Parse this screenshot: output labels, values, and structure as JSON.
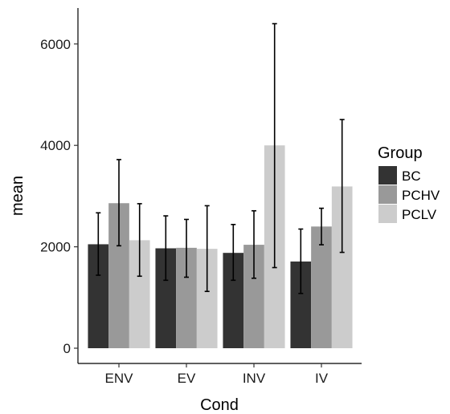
{
  "chart_data": {
    "type": "bar",
    "xlabel": "Cond",
    "ylabel": "mean",
    "categories": [
      "ENV",
      "EV",
      "INV",
      "IV"
    ],
    "ylim": [
      0,
      6400
    ],
    "yticks": [
      0,
      2000,
      4000,
      6000
    ],
    "grid": false,
    "legend": {
      "title": "Group",
      "placement": "right"
    },
    "series": [
      {
        "name": "BC",
        "color": "#333333",
        "values": [
          2050,
          1970,
          1880,
          1710
        ],
        "err_low": [
          1440,
          1340,
          1340,
          1080
        ],
        "err_high": [
          2670,
          2610,
          2440,
          2350
        ]
      },
      {
        "name": "PCHV",
        "color": "#999999",
        "values": [
          2860,
          1980,
          2040,
          2400
        ],
        "err_low": [
          2020,
          1400,
          1380,
          2040
        ],
        "err_high": [
          3720,
          2540,
          2710,
          2760
        ]
      },
      {
        "name": "PCLV",
        "color": "#cccccc",
        "values": [
          2130,
          1960,
          4000,
          3190
        ],
        "err_low": [
          1420,
          1120,
          1590,
          1890
        ],
        "err_high": [
          2850,
          2810,
          6400,
          4510
        ]
      }
    ]
  }
}
